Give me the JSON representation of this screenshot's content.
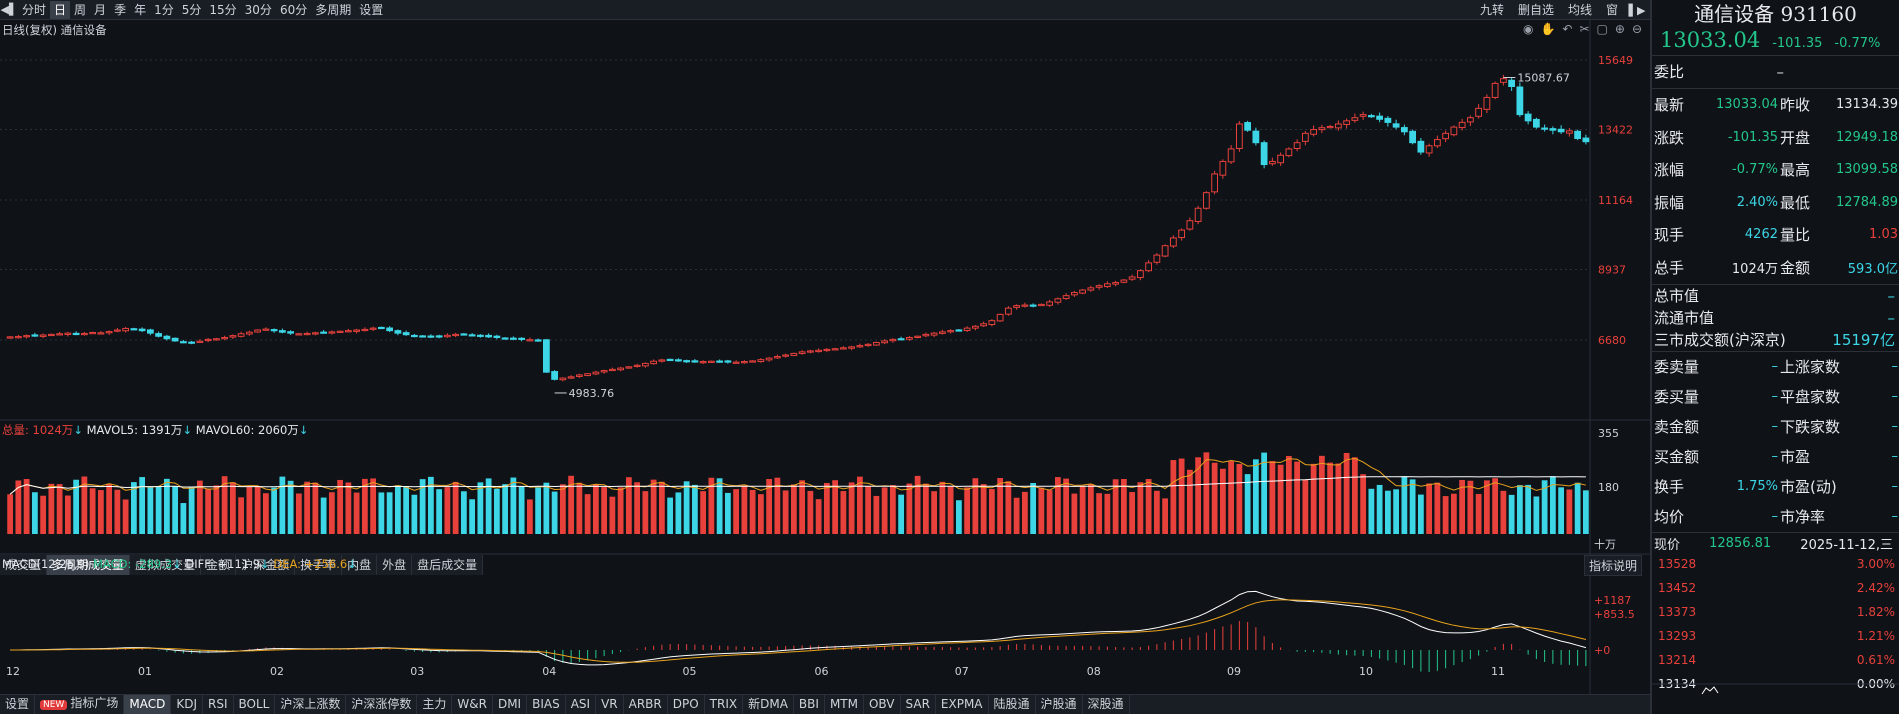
{
  "toolbar": {
    "left_icon": "back-icon",
    "periods": [
      "分时",
      "日",
      "周",
      "月",
      "季",
      "年",
      "1分",
      "5分",
      "15分",
      "30分",
      "60分",
      "多周期",
      "设置"
    ],
    "active_period": "日",
    "right_items": [
      "九转",
      "删自选",
      "均线",
      "窗"
    ]
  },
  "chart": {
    "title": "日线(复权) 通信设备",
    "icons": [
      "eye-icon",
      "hand-icon",
      "undo-icon",
      "scissors-icon",
      "lock-icon",
      "zoom-in-icon",
      "zoom-out-icon"
    ],
    "price_axis": [
      "15649",
      "13422",
      "11164",
      "8937",
      "6680"
    ],
    "high_label": "15087.67",
    "low_label": "4983.76"
  },
  "volume": {
    "total_label": "总量: 1024万",
    "mavol5_label": "MAVOL5: 1391万",
    "mavol60_label": "MAVOL60: 2060万",
    "axis": [
      "355",
      "180"
    ],
    "unit": "十万",
    "tabs": [
      "成交量",
      "多周期成交量",
      "虚拟成交量",
      "金额",
      "沪深金额",
      "换手率",
      "内盘",
      "外盘",
      "盘后成交量"
    ],
    "active_tab": "多周期成交量"
  },
  "macd": {
    "name_label": "MACD(12,26,9)",
    "macd_label": "MACD: -289.3",
    "diff_label": "DIFF: +111.9",
    "dea_label": "DEA: +256.6",
    "axis": [
      "+1187",
      "+853.5",
      "+0"
    ],
    "help_button": "指标说明"
  },
  "x_axis": [
    "12",
    "01",
    "02",
    "03",
    "04",
    "05",
    "06",
    "07",
    "08",
    "09",
    "10",
    "11"
  ],
  "bottom_tabs": {
    "settings": "设置",
    "new_badge": "NEW",
    "items": [
      "指标广场",
      "MACD",
      "KDJ",
      "RSI",
      "BOLL",
      "沪深上涨数",
      "沪深涨停数",
      "主力",
      "W&R",
      "DMI",
      "BIAS",
      "ASI",
      "VR",
      "ARBR",
      "DPO",
      "TRIX",
      "新DMA",
      "BBI",
      "MTM",
      "OBV",
      "SAR",
      "EXPMA",
      "陆股通",
      "沪股通",
      "深股通"
    ],
    "active": "MACD"
  },
  "quote": {
    "name": "通信设备 931160",
    "price": "13033.04",
    "change": "-101.35",
    "change_pct": "-0.77%",
    "webi_label": "委比",
    "webi_val": "–",
    "rows": [
      {
        "l1": "最新",
        "v1": "13033.04",
        "c1": "green",
        "l2": "昨收",
        "v2": "13134.39",
        "c2": "white"
      },
      {
        "l1": "涨跌",
        "v1": "-101.35",
        "c1": "green",
        "l2": "开盘",
        "v2": "12949.18",
        "c2": "green"
      },
      {
        "l1": "涨幅",
        "v1": "-0.77%",
        "c1": "green",
        "l2": "最高",
        "v2": "13099.58",
        "c2": "green"
      },
      {
        "l1": "振幅",
        "v1": "2.40%",
        "c1": "cyan",
        "l2": "最低",
        "v2": "12784.89",
        "c2": "green"
      },
      {
        "l1": "现手",
        "v1": "4262",
        "c1": "cyan",
        "l2": "量比",
        "v2": "1.03",
        "c2": "red"
      },
      {
        "l1": "总手",
        "v1": "1024万",
        "c1": "white",
        "l2": "金额",
        "v2": "593.0亿",
        "c2": "cyan"
      }
    ],
    "rows2": [
      {
        "l": "总市值",
        "v": "–"
      },
      {
        "l": "流通市值",
        "v": "–"
      },
      {
        "l": "三市成交额(沪深京)",
        "v": "15197亿"
      }
    ],
    "rows3": [
      {
        "l1": "委卖量",
        "v1": "–",
        "l2": "上涨家数",
        "v2": "–"
      },
      {
        "l1": "委买量",
        "v1": "–",
        "l2": "平盘家数",
        "v2": "–"
      },
      {
        "l1": "卖金额",
        "v1": "–",
        "l2": "下跌家数",
        "v2": "–"
      },
      {
        "l1": "买金额",
        "v1": "–",
        "l2": "市盈",
        "v2": "–"
      },
      {
        "l1": "换手",
        "v1": "1.75%",
        "l2": "市盈(动)",
        "v2": "–"
      },
      {
        "l1": "均价",
        "v1": "–",
        "l2": "市净率",
        "v2": "–"
      }
    ],
    "mini_header_label": "现价",
    "mini_header_price": "12856.81",
    "mini_header_date": "2025-11-12,三",
    "mini_rows": [
      {
        "p": "13528",
        "pct": "3.00%",
        "cls": "red"
      },
      {
        "p": "13452",
        "pct": "2.42%",
        "cls": "red"
      },
      {
        "p": "13373",
        "pct": "1.82%",
        "cls": "red"
      },
      {
        "p": "13293",
        "pct": "1.21%",
        "cls": "red"
      },
      {
        "p": "13214",
        "pct": "0.61%",
        "cls": "red"
      },
      {
        "p": "13134",
        "pct": "0.00%",
        "cls": "white"
      }
    ]
  },
  "colors": {
    "up": "#e8413c",
    "down": "#3cd6e6",
    "bg": "#0f1217",
    "ma_white": "#ffffff",
    "ma_yellow": "#e8a21c"
  },
  "chart_data": {
    "type": "candlestick",
    "series_close": [
      6780,
      6790,
      6820,
      6810,
      6840,
      6860,
      6880,
      6900,
      6870,
      6890,
      6920,
      6910,
      6950,
      7000,
      7050,
      7020,
      6980,
      6900,
      6800,
      6720,
      6650,
      6620,
      6610,
      6640,
      6700,
      6720,
      6760,
      6820,
      6880,
      6930,
      7000,
      7030,
      6980,
      6930,
      6900,
      6880,
      6890,
      6910,
      6930,
      6940,
      6960,
      6980,
      7000,
      7020,
      7060,
      7080,
      6980,
      6900,
      6850,
      6820,
      6800,
      6790,
      6800,
      6830,
      6860,
      6870,
      6840,
      6820,
      6780,
      6760,
      6740,
      6720,
      6700,
      6690,
      6680,
      5650,
      5420,
      5460,
      5500,
      5560,
      5600,
      5650,
      5700,
      5740,
      5780,
      5820,
      5870,
      5930,
      6000,
      6040,
      6060,
      6020,
      6000,
      5980,
      5990,
      6000,
      5990,
      5980,
      5970,
      5990,
      6010,
      6050,
      6100,
      6150,
      6200,
      6250,
      6300,
      6330,
      6350,
      6380,
      6400,
      6430,
      6460,
      6500,
      6540,
      6600,
      6650,
      6700,
      6720,
      6760,
      6800,
      6860,
      6900,
      6940,
      6980,
      7000,
      7060,
      7120,
      7200,
      7300,
      7500,
      7700,
      7780,
      7800,
      7790,
      7820,
      7900,
      8000,
      8100,
      8200,
      8280,
      8350,
      8420,
      8480,
      8520,
      8600,
      8700,
      8900,
      9150,
      9400,
      9700,
      9950,
      10200,
      10500,
      10900,
      11400,
      12000,
      12400,
      12800,
      13600,
      13400,
      13000,
      12300,
      12400,
      12600,
      12800,
      13000,
      13300,
      13420,
      13480,
      13520,
      13600,
      13700,
      13800,
      13900,
      13850,
      13750,
      13650,
      13500,
      13350,
      13000,
      12700,
      12900,
      13100,
      13300,
      13500,
      13650,
      13800,
      14100,
      14450,
      14900,
      15050,
      14800,
      13900,
      13700,
      13500,
      13450,
      13400,
      13350,
      13380,
      13134,
      13033
    ],
    "price_axis": [
      15649,
      13422,
      11164,
      8937,
      6680
    ],
    "high": 15087.67,
    "low": 4983.76,
    "x_labels": [
      "12",
      "01",
      "02",
      "03",
      "04",
      "05",
      "06",
      "07",
      "08",
      "09",
      "10",
      "11"
    ]
  }
}
